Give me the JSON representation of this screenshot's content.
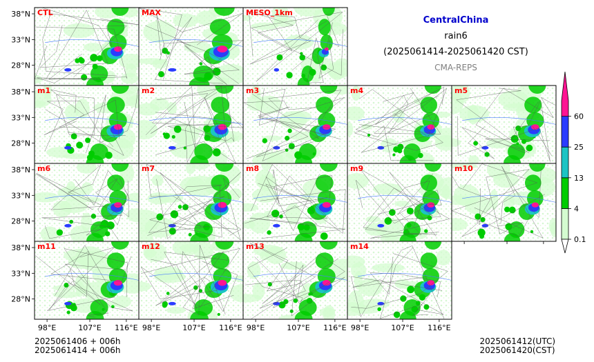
{
  "header": {
    "region": "CentralChina",
    "variable": "rain6",
    "period": "(2025061414-2025061420 CST)",
    "model": "CMA-REPS",
    "region_color": "#0000cc",
    "model_color": "#7f7f7f"
  },
  "panels": [
    {
      "label": "CTL",
      "intensity": 0.7
    },
    {
      "label": "MAX",
      "intensity": 1.0
    },
    {
      "label": "MESO_1km",
      "intensity": 0.25
    },
    {
      "label": "m1",
      "intensity": 0.75
    },
    {
      "label": "m2",
      "intensity": 0.8
    },
    {
      "label": "m3",
      "intensity": 0.7
    },
    {
      "label": "m4",
      "intensity": 0.65
    },
    {
      "label": "m5",
      "intensity": 0.7
    },
    {
      "label": "m6",
      "intensity": 0.7
    },
    {
      "label": "m7",
      "intensity": 0.8
    },
    {
      "label": "m8",
      "intensity": 0.75
    },
    {
      "label": "m9",
      "intensity": 0.65
    },
    {
      "label": "m10",
      "intensity": 0.6
    },
    {
      "label": "m11",
      "intensity": 0.75
    },
    {
      "label": "m12",
      "intensity": 0.8
    },
    {
      "label": "m13",
      "intensity": 0.75
    },
    {
      "label": "m14",
      "intensity": 0.65
    }
  ],
  "panel_label_color": "#ff0000",
  "axes": {
    "lat_ticks": [
      "38°N",
      "33°N",
      "28°N"
    ],
    "lon_ticks": [
      "98°E",
      "107°E",
      "116°E"
    ]
  },
  "colorbar": {
    "bounds": [
      "0.1",
      "4",
      "13",
      "25",
      "60"
    ],
    "colors": [
      "#d4fcd0",
      "#00cc00",
      "#1cc4c4",
      "#2a3cff",
      "#ff1493"
    ],
    "extend": "both"
  },
  "footer": {
    "left_line1": "2025061406  +  006h",
    "left_line2": "2025061414  +  006h",
    "right_line1": "2025061412(UTC)",
    "right_line2": "2025061420(CST)"
  }
}
